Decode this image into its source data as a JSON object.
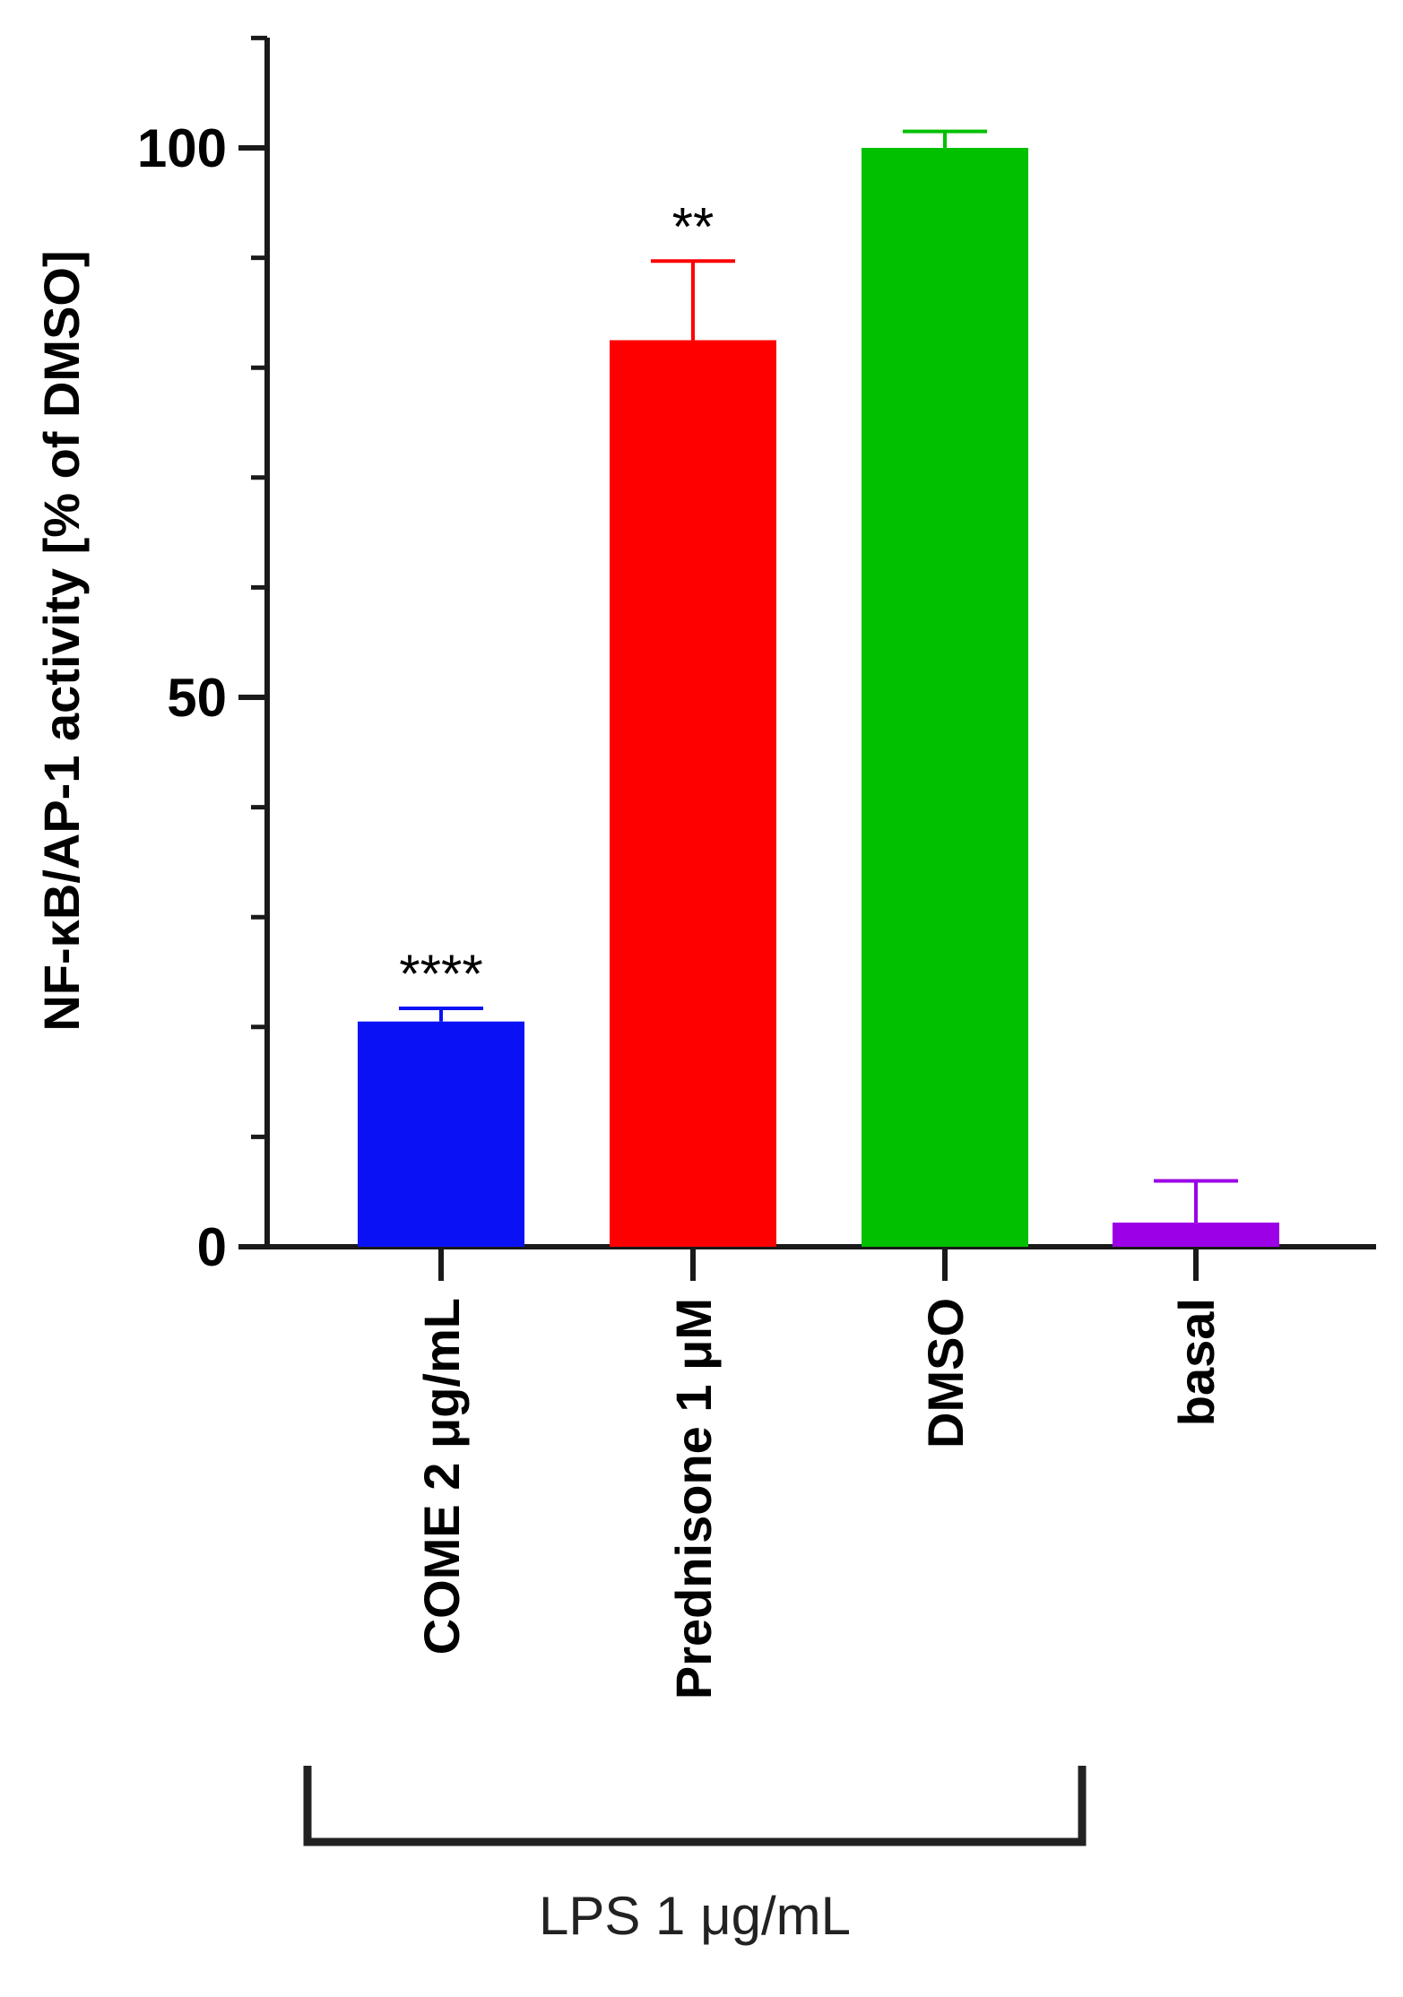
{
  "chart_data": {
    "type": "bar",
    "categories": [
      "COME  2 μg/mL",
      "Prednisone 1 μM",
      "DMSO",
      "basal"
    ],
    "values": [
      20.5,
      82.5,
      100,
      2.2
    ],
    "errors": [
      1.2,
      7.2,
      1.5,
      3.8
    ],
    "significance": [
      "****",
      "**",
      "",
      ""
    ],
    "colors": [
      "#0a12f5",
      "#ff0000",
      "#00c000",
      "#9b00e6"
    ],
    "ylabel": "NF-κB/AP-1 activity [% of DMSO]",
    "ylim": [
      0,
      110
    ],
    "yticks_major": [
      0,
      50,
      100
    ],
    "yticks_minor": [
      10,
      20,
      30,
      40,
      60,
      70,
      80,
      90,
      110
    ],
    "ytick_labels": [
      "0",
      "50",
      "100"
    ],
    "group_bracket": {
      "label": "LPS 1 μg/mL",
      "categories": [
        "COME  2 μg/mL",
        "Prednisone 1 μM",
        "DMSO"
      ]
    },
    "grid": false
  }
}
